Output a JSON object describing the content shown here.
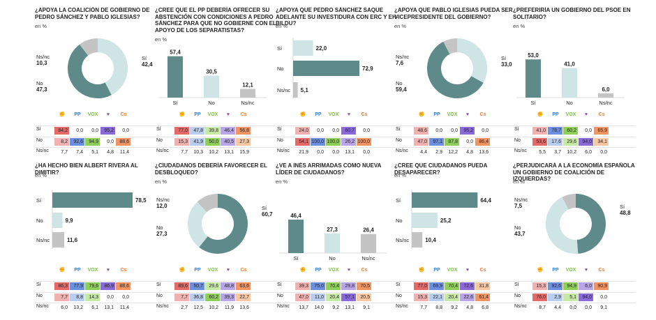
{
  "colors": {
    "teal": "#5f8a8a",
    "light": "#cfe4e4",
    "grey": "#c4c4c4",
    "psoe": "#e46a6a",
    "pp": "#2b7fd6",
    "vox": "#7cc043",
    "up": "#7e4ea3",
    "cs": "#f07b2a",
    "scale": {
      "red": "#f2b1b1",
      "redStrong": "#e46a6a",
      "blue": "#b9cdef",
      "blueStrong": "#6d8fe0",
      "green": "#c7e9a6",
      "greenStrong": "#8fce5a",
      "purple": "#b8a6e6",
      "purpleStrong": "#8a6ad8",
      "orange": "#f8c7a3",
      "orangeStrong": "#f19463"
    }
  },
  "party_logos": [
    {
      "name": "psoe-logo-icon",
      "glyph": "✊"
    },
    {
      "name": "pp-logo-icon",
      "glyph": "PP"
    },
    {
      "name": "vox-logo-icon",
      "glyph": "VOX"
    },
    {
      "name": "podemos-logo-icon",
      "glyph": "♥"
    },
    {
      "name": "cs-logo-icon",
      "glyph": "Cs"
    }
  ],
  "row_labels": [
    "Sí",
    "No",
    "Ns/nc"
  ],
  "chart_data": [
    {
      "type": "pie",
      "title": "¿APOYA LA COALICIÓN DE GOBIERNO DE PEDRO SÁNCHEZ Y PABLO IGLESIAS?",
      "unit": "en %",
      "categories": [
        "Sí",
        "No",
        "Ns/nc"
      ],
      "values": [
        "42,4",
        "47,3",
        "10,3"
      ],
      "nums": [
        42.4,
        47.3,
        10.3
      ],
      "colors": [
        "#cfe4e4",
        "#5f8a8a",
        "#c4c4c4"
      ],
      "table": [
        [
          "84,2",
          "0,0",
          "0,0",
          "95,2",
          "0,0"
        ],
        [
          "8,2",
          "92,6",
          "94,9",
          "0,0",
          "88,6"
        ],
        [
          "7,7",
          "7,4",
          "5,1",
          "4,8",
          "11,4"
        ]
      ]
    },
    {
      "type": "bar",
      "title": "¿CREE QUE EL PP DEBERÍA OFRECER SU ABSTENCIÓN CON CONDICIONES A PEDRO SÁNCHEZ PARA QUE NO GOBIERNE CON EL APOYO DE LOS SEPARATISTAS?",
      "unit": "en %",
      "categories": [
        "Sí",
        "No",
        "Ns/nc"
      ],
      "values": [
        "57,4",
        "30,5",
        "12,1"
      ],
      "nums": [
        57.4,
        30.5,
        12.1
      ],
      "table": [
        [
          "77,0",
          "47,8",
          "39,8",
          "46,4",
          "56,8"
        ],
        [
          "15,3",
          "41,9",
          "50,0",
          "40,5",
          "27,3"
        ],
        [
          "7,7",
          "10,3",
          "10,2",
          "13,1",
          "15,9"
        ]
      ]
    },
    {
      "type": "hbar",
      "title": "¿APOYA QUE PEDRO SÁNCHEZ SAQUE ADELANTE SU INVESTIDURA CON ERC Y EH-BILDU?",
      "unit": "en %",
      "categories": [
        "Sí",
        "No",
        "Ns/nc"
      ],
      "values": [
        "22,0",
        "72,9",
        "5,1"
      ],
      "nums": [
        22.0,
        72.9,
        5.1
      ],
      "table": [
        [
          "24,0",
          "0,0",
          "0,0",
          "60,7",
          "0,0"
        ],
        [
          "54,1",
          "100,0",
          "100,0",
          "26,2",
          "100,0"
        ],
        [
          "21,9",
          "0,0",
          "0,0",
          "13,1",
          "0,0"
        ]
      ]
    },
    {
      "type": "pie",
      "title": "¿APOYA QUE PABLO IGLESIAS PUEDA SER VICEPRESIDENTE DEL GOBIERNO?",
      "unit": "en %",
      "categories": [
        "Sí",
        "No",
        "Ns/nc"
      ],
      "values": [
        "33,0",
        "59,4",
        "7,6"
      ],
      "nums": [
        33.0,
        59.4,
        7.6
      ],
      "colors": [
        "#cfe4e4",
        "#5f8a8a",
        "#c4c4c4"
      ],
      "table": [
        [
          "48,6",
          "0,0",
          "0,0",
          "95,2",
          "0,0"
        ],
        [
          "47,0",
          "97,1",
          "87,8",
          "0,0",
          "86,4"
        ],
        [
          "4,4",
          "2,9",
          "12,2",
          "4,8",
          "13,6"
        ]
      ]
    },
    {
      "type": "bar",
      "title": "¿PREFERIRÍA UN GOBIERNO DEL PSOE EN SOLITARIO?",
      "unit": "en %",
      "categories": [
        "Sí",
        "No",
        "Ns/nc"
      ],
      "values": [
        "53,0",
        "41,0",
        "6,0"
      ],
      "nums": [
        53.0,
        41.0,
        6.0
      ],
      "table": [
        [
          "41,0",
          "78,7",
          "60,2",
          "0,0",
          "65,9"
        ],
        [
          "53,6",
          "17,6",
          "29,6",
          "94,0",
          "34,1"
        ],
        [
          "5,5",
          "3,7",
          "10,2",
          "6,0",
          "0,0"
        ]
      ]
    },
    {
      "type": "hbar",
      "title": "¿HA HECHO BIEN ALBERT RIVERA AL DIMITIR?",
      "unit": "en %",
      "categories": [
        "Sí",
        "No",
        "Ns/nc"
      ],
      "values": [
        "78,5",
        "9,9",
        "11,6"
      ],
      "nums": [
        78.5,
        9.9,
        11.6
      ],
      "table": [
        [
          "86,3",
          "77,9",
          "79,6",
          "86,9",
          "88,6"
        ],
        [
          "7,7",
          "8,8",
          "14,3",
          "0,0",
          "0,0"
        ],
        [
          "6,0",
          "13,2",
          "6,1",
          "13,1",
          "11,4"
        ]
      ]
    },
    {
      "type": "pie",
      "title": "¿CIUDADANOS DEBERÍA FAVORECER EL DESBLOQUEO?",
      "unit": "en %",
      "categories": [
        "Sí",
        "No",
        "Ns/nc"
      ],
      "values": [
        "60,7",
        "27,3",
        "12,0"
      ],
      "nums": [
        60.7,
        27.3,
        12.0
      ],
      "colors": [
        "#5f8a8a",
        "#cfe4e4",
        "#c4c4c4"
      ],
      "table": [
        [
          "89,6",
          "50,7",
          "29,6",
          "48,8",
          "63,6"
        ],
        [
          "7,7",
          "36,8",
          "60,2",
          "39,3",
          "22,7"
        ],
        [
          "2,7",
          "12,5",
          "10,2",
          "11,9",
          "13,6"
        ]
      ]
    },
    {
      "type": "bar",
      "title": "¿VE A INÉS ARRIMADAS COMO NUEVA LÍDER DE CIUDADANOS?",
      "unit": "en %",
      "categories": [
        "Sí",
        "No",
        "Ns/nc"
      ],
      "values": [
        "46,4",
        "27,3",
        "26,4"
      ],
      "nums": [
        46.4,
        27.3,
        26.4
      ],
      "table": [
        [
          "39,3",
          "75,0",
          "70,4",
          "29,8",
          "70,5"
        ],
        [
          "47,0",
          "11,0",
          "20,4",
          "57,1",
          "20,5"
        ],
        [
          "13,7",
          "14,0",
          "9,2",
          "13,1",
          "9,1"
        ]
      ]
    },
    {
      "type": "hbar",
      "title": "¿CREE QUE CIUDADANOS PUEDA DESAPARECER?",
      "unit": "en %",
      "categories": [
        "Sí",
        "No",
        "Ns/nc"
      ],
      "values": [
        "64,4",
        "25,2",
        "10,4"
      ],
      "nums": [
        64.4,
        25.2,
        10.4
      ],
      "table": [
        [
          "77,0",
          "69,9",
          "70,4",
          "72,6",
          "31,8"
        ],
        [
          "15,3",
          "22,1",
          "20,4",
          "22,6",
          "61,4"
        ],
        [
          "7,7",
          "8,8",
          "9,2",
          "4,8",
          "6,8"
        ]
      ]
    },
    {
      "type": "pie",
      "title": "¿PERJUDICARÁ A LA ECONOMÍA ESPAÑOLA UN GOBIERNO DE COALICIÓN DE IZQUIERDAS?",
      "unit": "en %",
      "categories": [
        "Sí",
        "No",
        "Ns/nc"
      ],
      "values": [
        "48,8",
        "43,7",
        "7,5"
      ],
      "nums": [
        48.8,
        43.7,
        7.5
      ],
      "colors": [
        "#5f8a8a",
        "#cfe4e4",
        "#c4c4c4"
      ],
      "table": [
        [
          "15,3",
          "92,6",
          "94,9",
          "6,0",
          "90,9"
        ],
        [
          "76,0",
          "2,9",
          "5,1",
          "94,0",
          "0,0"
        ],
        [
          "8,7",
          "4,4",
          "0,0",
          "0,0",
          "9,1"
        ]
      ]
    }
  ]
}
